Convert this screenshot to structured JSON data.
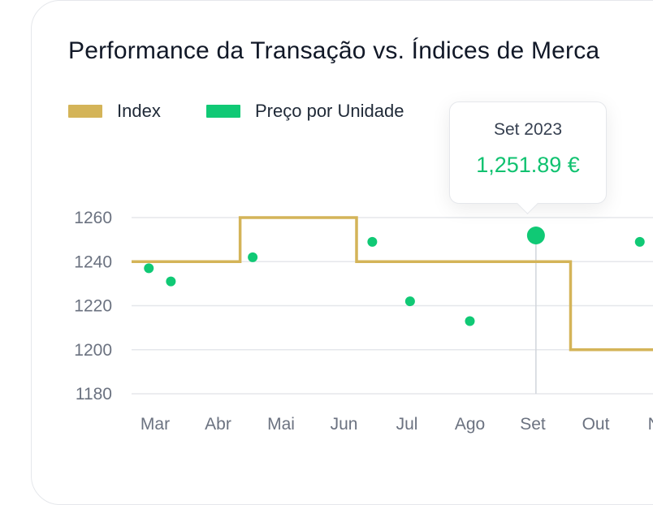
{
  "colors": {
    "index": "#d4b458",
    "price": "#10c975",
    "grid": "#e5e7eb",
    "axis_text": "#6b7280"
  },
  "chart_data": {
    "type": "line",
    "title": "Performance da Transação vs. Índices de Merca",
    "categories": [
      "Mar",
      "Abr",
      "Mai",
      "Jun",
      "Jul",
      "Ago",
      "Set",
      "Out",
      "No"
    ],
    "ylim": [
      1180,
      1260
    ],
    "y_ticks": [
      1260,
      1240,
      1220,
      1200,
      1180
    ],
    "grid": true,
    "legend_position": "top-left",
    "series": [
      {
        "name": "Index",
        "kind": "step",
        "x": [
          0,
          1.35,
          1.35,
          3.2,
          3.2,
          6.6,
          6.6,
          9.4
        ],
        "values": [
          1240,
          1240,
          1260,
          1260,
          1240,
          1240,
          1200,
          1200
        ]
      },
      {
        "name": "Preço por Unidade",
        "kind": "scatter",
        "x": [
          -0.1,
          0.25,
          1.55,
          3.45,
          4.05,
          5.0,
          6.05,
          7.7
        ],
        "values": [
          1237,
          1231,
          1242,
          1249,
          1222,
          1213,
          1251.89,
          1249
        ]
      }
    ],
    "tooltip": {
      "date": "Set 2023",
      "value": "1,251.89 €",
      "point_index": 6
    }
  }
}
